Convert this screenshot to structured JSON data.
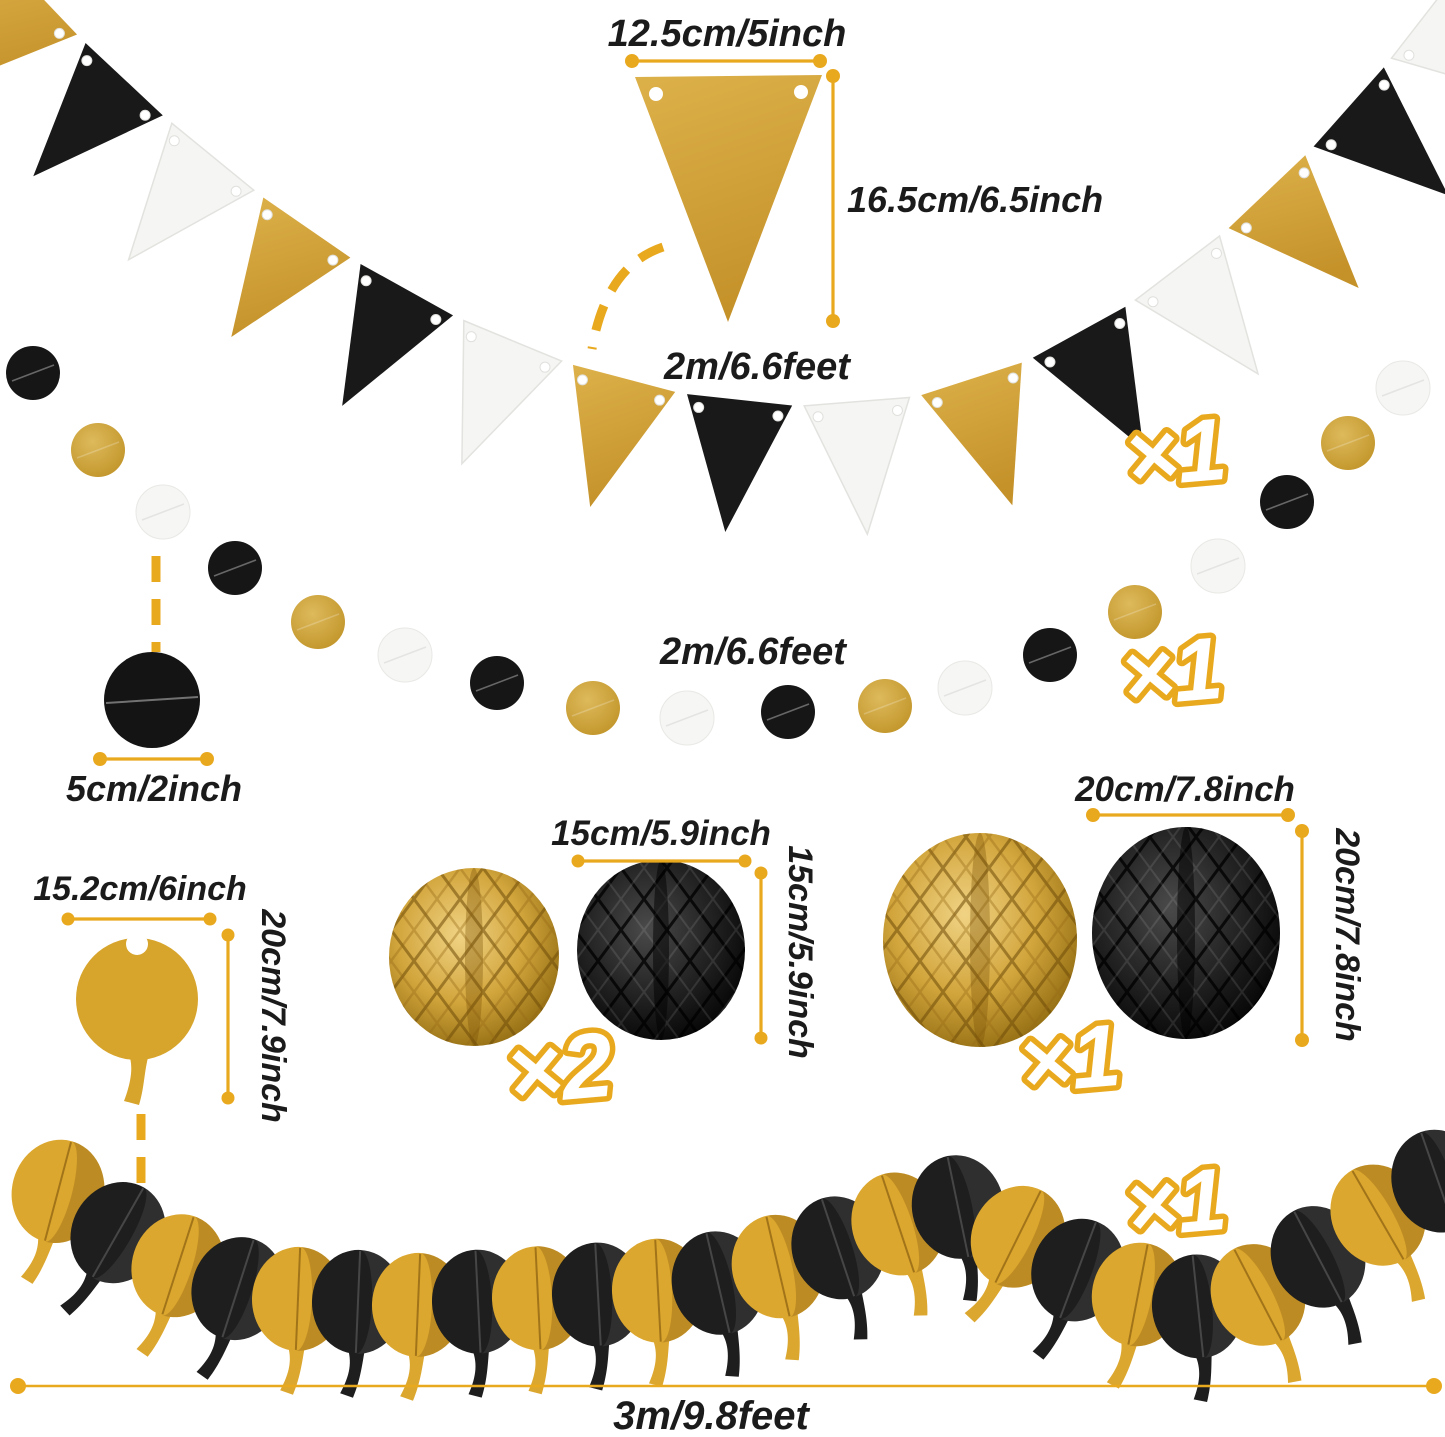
{
  "labels": {
    "pennant_width": "12.5cm/5inch",
    "pennant_height": "16.5cm/6.5inch",
    "pennant_length": "2m/6.6feet",
    "pennant_count": "×1",
    "dot_garland_length": "2m/6.6feet",
    "dot_garland_count": "×1",
    "dot_size": "5cm/2inch",
    "honeycomb_small_size": "15cm/5.9inch",
    "honeycomb_small_size_vertical": "15cm/5.9inch",
    "honeycomb_small_count": "×2",
    "honeycomb_large_size": "20cm/7.8inch",
    "honeycomb_large_size_vertical": "20cm/7.8inch",
    "honeycomb_large_count": "×1",
    "balloon_cutout_width": "15.2cm/6inch",
    "balloon_cutout_height": "20cm/7.9inch",
    "balloon_garland_length": "3m/9.8feet",
    "balloon_garland_count": "×1"
  },
  "colors": {
    "gold": "#D2A235",
    "black": "#191919",
    "white": "#F5F5F3",
    "annotation_gold": "#E9A91F",
    "balloon_gold": "#DCA72E",
    "balloon_black": "#1E1E1E",
    "text": "#1B1B1B"
  },
  "pennant_banner": {
    "flag_colors": [
      "gold",
      "black",
      "white",
      "gold",
      "black",
      "white",
      "gold",
      "black",
      "white",
      "gold",
      "black",
      "white",
      "gold",
      "black",
      "white"
    ]
  },
  "circle_garland": {
    "dot_colors": [
      "black",
      "gold",
      "white",
      "black",
      "gold",
      "white",
      "black",
      "gold",
      "white",
      "black",
      "gold",
      "white",
      "black",
      "gold",
      "white",
      "black",
      "gold",
      "white"
    ]
  },
  "honeycomb_small": {
    "ball_colors": [
      "gold",
      "black"
    ]
  },
  "honeycomb_large": {
    "ball_colors": [
      "gold",
      "black"
    ]
  },
  "balloon_garland": {
    "balloon_colors": [
      "gold",
      "black",
      "gold",
      "black",
      "gold",
      "black",
      "gold",
      "black",
      "gold",
      "black",
      "gold",
      "black",
      "gold",
      "black",
      "gold",
      "black",
      "gold",
      "black",
      "gold",
      "black",
      "gold",
      "black",
      "gold",
      "black"
    ]
  }
}
